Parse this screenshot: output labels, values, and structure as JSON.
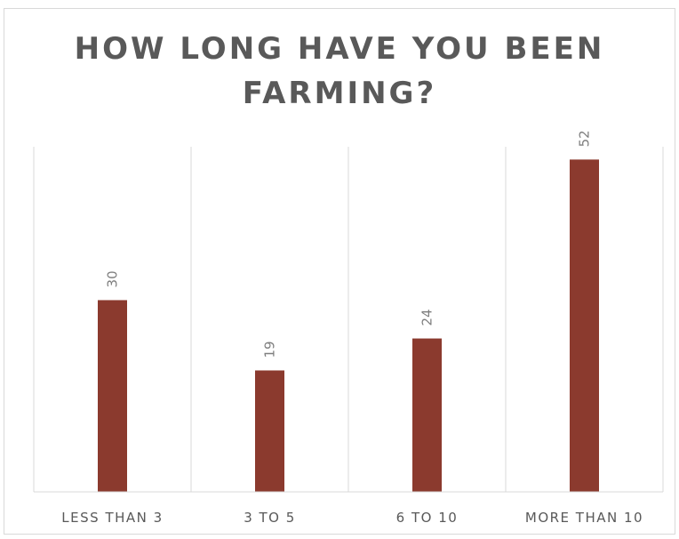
{
  "chart_data": {
    "type": "bar",
    "title": "HOW LONG HAVE YOU BEEN FARMING?",
    "xlabel": "",
    "ylabel": "",
    "categories": [
      "LESS THAN 3",
      "3 TO 5",
      "6 TO 10",
      "MORE THAN 10"
    ],
    "values": [
      30,
      19,
      24,
      52
    ],
    "ylim": [
      0,
      54
    ],
    "grid": "vertical category separators",
    "legend": "none",
    "bar_color": "#8B3A2E",
    "data_labels": "rotated vertical above bars"
  }
}
